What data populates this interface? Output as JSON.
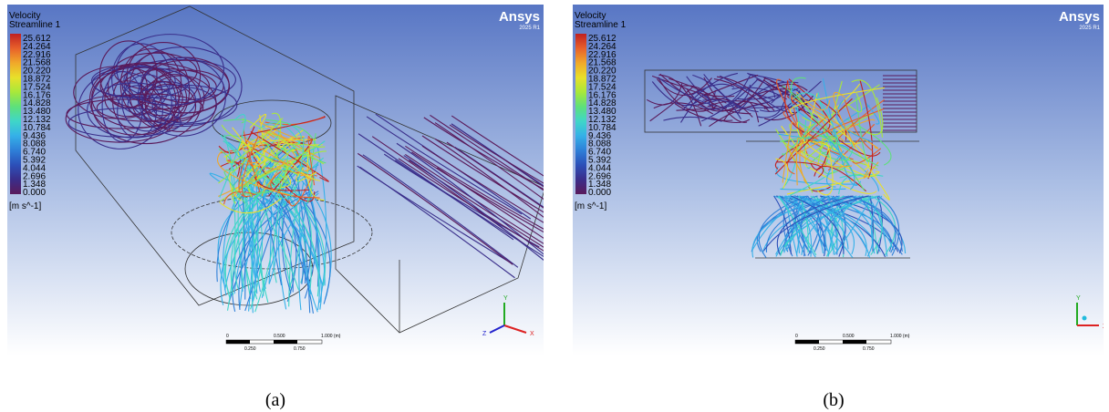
{
  "panels": [
    {
      "caption": "(a)",
      "header": {
        "variable": "Velocity",
        "object": "Streamline 1"
      },
      "legend": {
        "levels": [
          "25.612",
          "24.264",
          "22.916",
          "21.568",
          "20.220",
          "18.872",
          "17.524",
          "16.176",
          "14.828",
          "13.480",
          "12.132",
          "10.784",
          "9.436",
          "8.088",
          "6.740",
          "5.392",
          "4.044",
          "2.696",
          "1.348",
          "0.000"
        ],
        "unit": "[m s^-1]"
      },
      "brand": {
        "name": "Ansys",
        "version": "2025 R1"
      },
      "scale_bar": {
        "top": [
          "0",
          "0.500",
          "1.000 (m)"
        ],
        "bottom": [
          "0.250",
          "0.750"
        ]
      },
      "axes": [
        "Y",
        "Z",
        "X"
      ]
    },
    {
      "caption": "(b)",
      "header": {
        "variable": "Velocity",
        "object": "Streamline 1"
      },
      "legend": {
        "levels": [
          "25.612",
          "24.264",
          "22.916",
          "21.568",
          "20.220",
          "18.872",
          "17.524",
          "16.176",
          "14.828",
          "13.480",
          "12.132",
          "10.784",
          "9.436",
          "8.088",
          "6.740",
          "5.392",
          "4.044",
          "2.696",
          "1.348",
          "0.000"
        ],
        "unit": "[m s^-1]"
      },
      "brand": {
        "name": "Ansys",
        "version": "2025 R1"
      },
      "scale_bar": {
        "top": [
          "0",
          "0.500",
          "1.000 (m)"
        ],
        "bottom": [
          "0.250",
          "0.750"
        ]
      },
      "axes": [
        "Y",
        "X"
      ]
    }
  ]
}
